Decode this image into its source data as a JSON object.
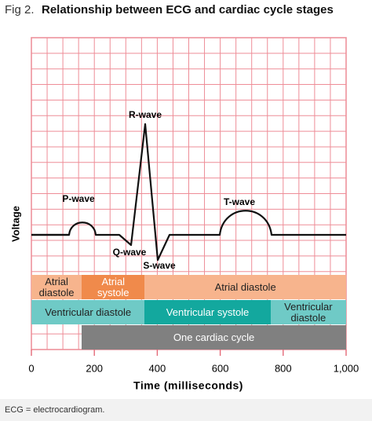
{
  "header": {
    "figure": "Fig 2.",
    "title": "Relationship between ECG and cardiac cycle stages"
  },
  "chart_data": {
    "type": "ecg-timeline",
    "xlabel": "Time (milliseconds)",
    "ylabel": "Voltage",
    "xlim": [
      0,
      1000
    ],
    "xticks": [
      0,
      200,
      400,
      600,
      800,
      {
        "value": 1000,
        "label": "1,000"
      }
    ],
    "annotations": [
      "P-wave",
      "Q-wave",
      "R-wave",
      "S-wave",
      "T-wave"
    ],
    "rows": [
      [
        {
          "label": "Atrial diastole",
          "start": 0,
          "end": 160,
          "color": "#f7b48d"
        },
        {
          "label": "Atrial systole",
          "start": 160,
          "end": 360,
          "color": "#f08a4b"
        },
        {
          "label": "Atrial diastole",
          "start": 360,
          "end": 1000,
          "color": "#f7b48d"
        }
      ],
      [
        {
          "label": "Ventricular diastole",
          "start": 0,
          "end": 360,
          "color": "#6fcac6"
        },
        {
          "label": "Ventricular systole",
          "start": 360,
          "end": 760,
          "color": "#13a89e"
        },
        {
          "label": "Ventricular diastole",
          "start": 760,
          "end": 1000,
          "color": "#6fcac6"
        }
      ],
      [
        {
          "label": "One cardiac cycle",
          "start": 160,
          "end": 1000,
          "color": "#808080"
        }
      ]
    ]
  },
  "footer": "ECG = electrocardiogram."
}
